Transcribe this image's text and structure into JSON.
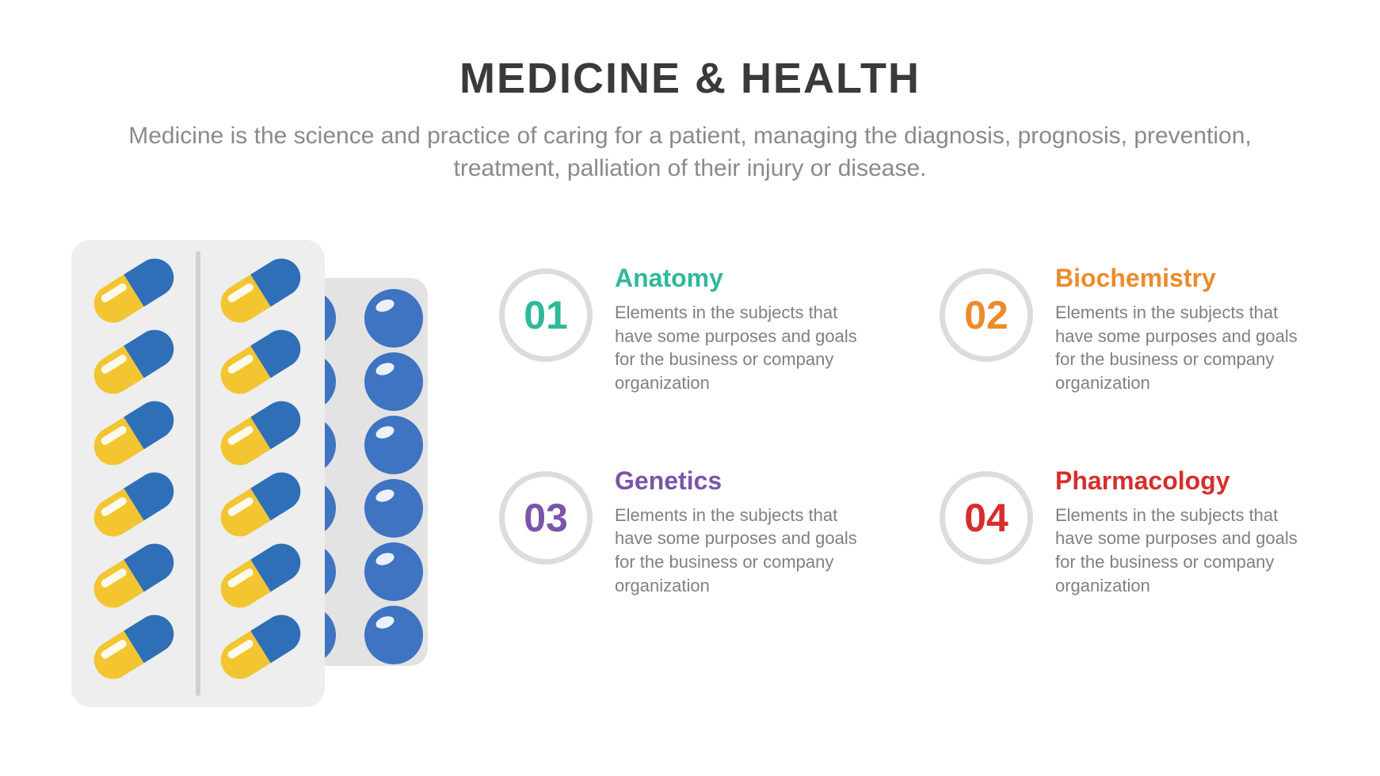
{
  "header": {
    "title": "MEDICINE & HEALTH",
    "title_color": "#3a3a3a",
    "title_fontsize": 54,
    "subtitle": "Medicine is the science and practice of caring for a patient, managing the diagnosis, prognosis, prevention, treatment, palliation of their injury or disease.",
    "subtitle_color": "#8a8a8a",
    "subtitle_fontsize": 30
  },
  "illustration": {
    "type": "infographic",
    "blister_front_color": "#eeeeee",
    "blister_back_color": "#e3e3e3",
    "divider_color": "#d0d0d0",
    "capsule_left_color": "#f2c531",
    "capsule_right_color": "#2f6fb8",
    "round_pill_color": "#3e74c1",
    "capsule_rows": 6,
    "capsule_cols": 2,
    "round_pill_rows": 6,
    "round_pill_cols": 2
  },
  "items": [
    {
      "num": "01",
      "title": "Anatomy",
      "color": "#2fb89a",
      "desc": "Elements in the subjects that have some purposes and goals for the  business or company organization"
    },
    {
      "num": "02",
      "title": "Biochemistry",
      "color": "#ec8b2c",
      "desc": "Elements in the subjects that have some purposes and goals for the  business or company organization"
    },
    {
      "num": "03",
      "title": "Genetics",
      "color": "#7a55a8",
      "desc": "Elements in the subjects that have some purposes and goals for the  business or company organization"
    },
    {
      "num": "04",
      "title": "Pharmacology",
      "color": "#d62e2e",
      "desc": "Elements in the subjects that have some purposes and goals for the  business or company organization"
    }
  ],
  "styling": {
    "background_color": "#ffffff",
    "circle_border_color": "#dcdcdc",
    "circle_border_width": 7,
    "circle_diameter": 118,
    "num_fontsize": 50,
    "item_title_fontsize": 32,
    "item_desc_fontsize": 22,
    "item_desc_color": "#808080"
  }
}
